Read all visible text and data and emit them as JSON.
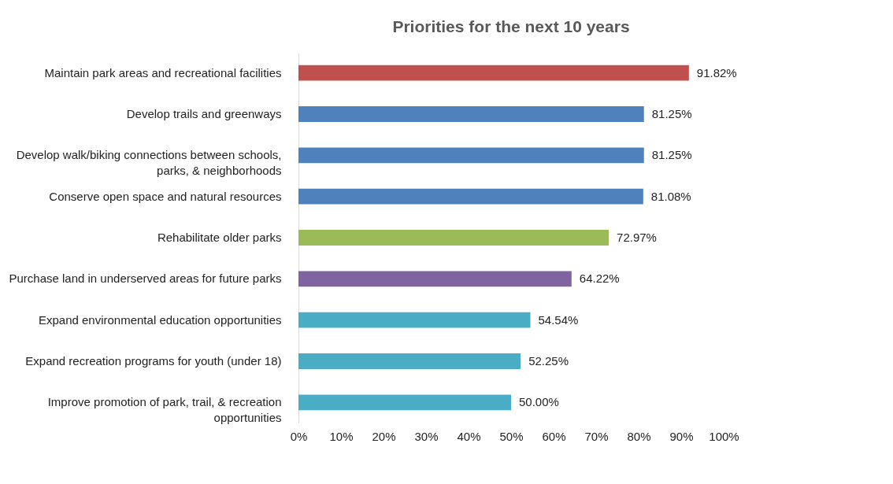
{
  "chart_data": {
    "type": "bar",
    "orientation": "horizontal",
    "title": "Priorities for the next 10 years",
    "categories": [
      "Maintain park areas and recreational facilities",
      "Develop trails and greenways",
      "Develop walk/biking connections between schools, parks, & neighborhoods",
      "Conserve open space and natural resources",
      "Rehabilitate older parks",
      "Purchase land in underserved areas for future parks",
      "Expand environmental education opportunities",
      "Expand recreation programs for youth (under 18)",
      "Improve promotion of park, trail, & recreation opportunities"
    ],
    "values": [
      91.82,
      81.25,
      81.25,
      81.08,
      72.97,
      64.22,
      54.54,
      52.25,
      50.0
    ],
    "colors": [
      "#c0504d",
      "#4f81bd",
      "#4f81bd",
      "#4f81bd",
      "#9bbb59",
      "#8064a2",
      "#4bacc6",
      "#4bacc6",
      "#4bacc6"
    ],
    "value_labels": [
      "91.82%",
      "81.25%",
      "81.25%",
      "81.08%",
      "72.97%",
      "64.22%",
      "54.54%",
      "52.25%",
      "50.00%"
    ],
    "xlim": [
      0,
      100
    ],
    "xticks": [
      {
        "value": 0,
        "label": "0%"
      },
      {
        "value": 10,
        "label": "10%"
      },
      {
        "value": 20,
        "label": "20%"
      },
      {
        "value": 30,
        "label": "30%"
      },
      {
        "value": 40,
        "label": "40%"
      },
      {
        "value": 50,
        "label": "50%"
      },
      {
        "value": 60,
        "label": "60%"
      },
      {
        "value": 70,
        "label": "70%"
      },
      {
        "value": 80,
        "label": "80%"
      },
      {
        "value": 90,
        "label": "90%"
      },
      {
        "value": 100,
        "label": "100%"
      }
    ],
    "grid": false
  }
}
